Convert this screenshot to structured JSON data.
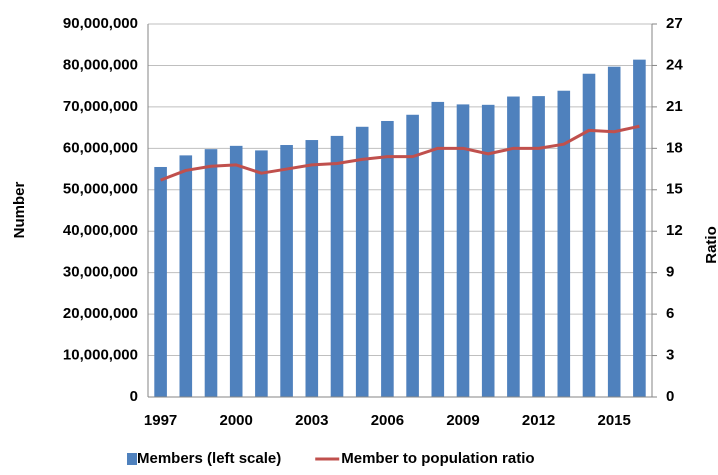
{
  "chart_data": {
    "type": "bar-line",
    "categories": [
      "1997",
      null,
      null,
      "2000",
      null,
      null,
      "2003",
      null,
      null,
      "2006",
      null,
      null,
      "2009",
      null,
      null,
      "2012",
      null,
      null,
      "2015",
      null
    ],
    "series": [
      {
        "name": "Members (left scale)",
        "color": "#4f81bd",
        "type": "bar",
        "values": [
          55500000,
          58300000,
          59800000,
          60600000,
          59500000,
          60800000,
          62000000,
          63000000,
          65200000,
          66600000,
          68100000,
          71200000,
          70600000,
          70500000,
          72500000,
          72600000,
          73900000,
          78000000,
          79700000,
          81400000
        ]
      },
      {
        "name": "Member to population ratio",
        "color": "#c0504d",
        "type": "line",
        "axis": "y2",
        "values": [
          15.7,
          16.4,
          16.7,
          16.8,
          16.2,
          16.5,
          16.8,
          16.9,
          17.2,
          17.4,
          17.4,
          18.0,
          18.0,
          17.6,
          18.0,
          18.0,
          18.3,
          19.3,
          19.2,
          19.6
        ]
      }
    ],
    "ylabel": "Number",
    "y2label": "Ratio",
    "ylim": [
      0,
      90000000
    ],
    "yticks": [
      0,
      {
        "value": 10000000,
        "label": "10,000,000"
      },
      {
        "value": 20000000,
        "label": "20,000,000"
      },
      {
        "value": 30000000,
        "label": "30,000,000"
      },
      {
        "value": 40000000,
        "label": "40,000,000"
      },
      {
        "value": 50000000,
        "label": "50,000,000"
      },
      {
        "value": 60000000,
        "label": "60,000,000"
      },
      {
        "value": 70000000,
        "label": "70,000,000"
      },
      {
        "value": 80000000,
        "label": "80,000,000"
      },
      {
        "value": 90000000,
        "label": "90,000,000"
      }
    ],
    "y2lim": [
      0,
      27
    ],
    "y2ticks": [
      0,
      3,
      6,
      9,
      12,
      15,
      18,
      21,
      24,
      27
    ],
    "grid": true,
    "legend": "bottom"
  }
}
